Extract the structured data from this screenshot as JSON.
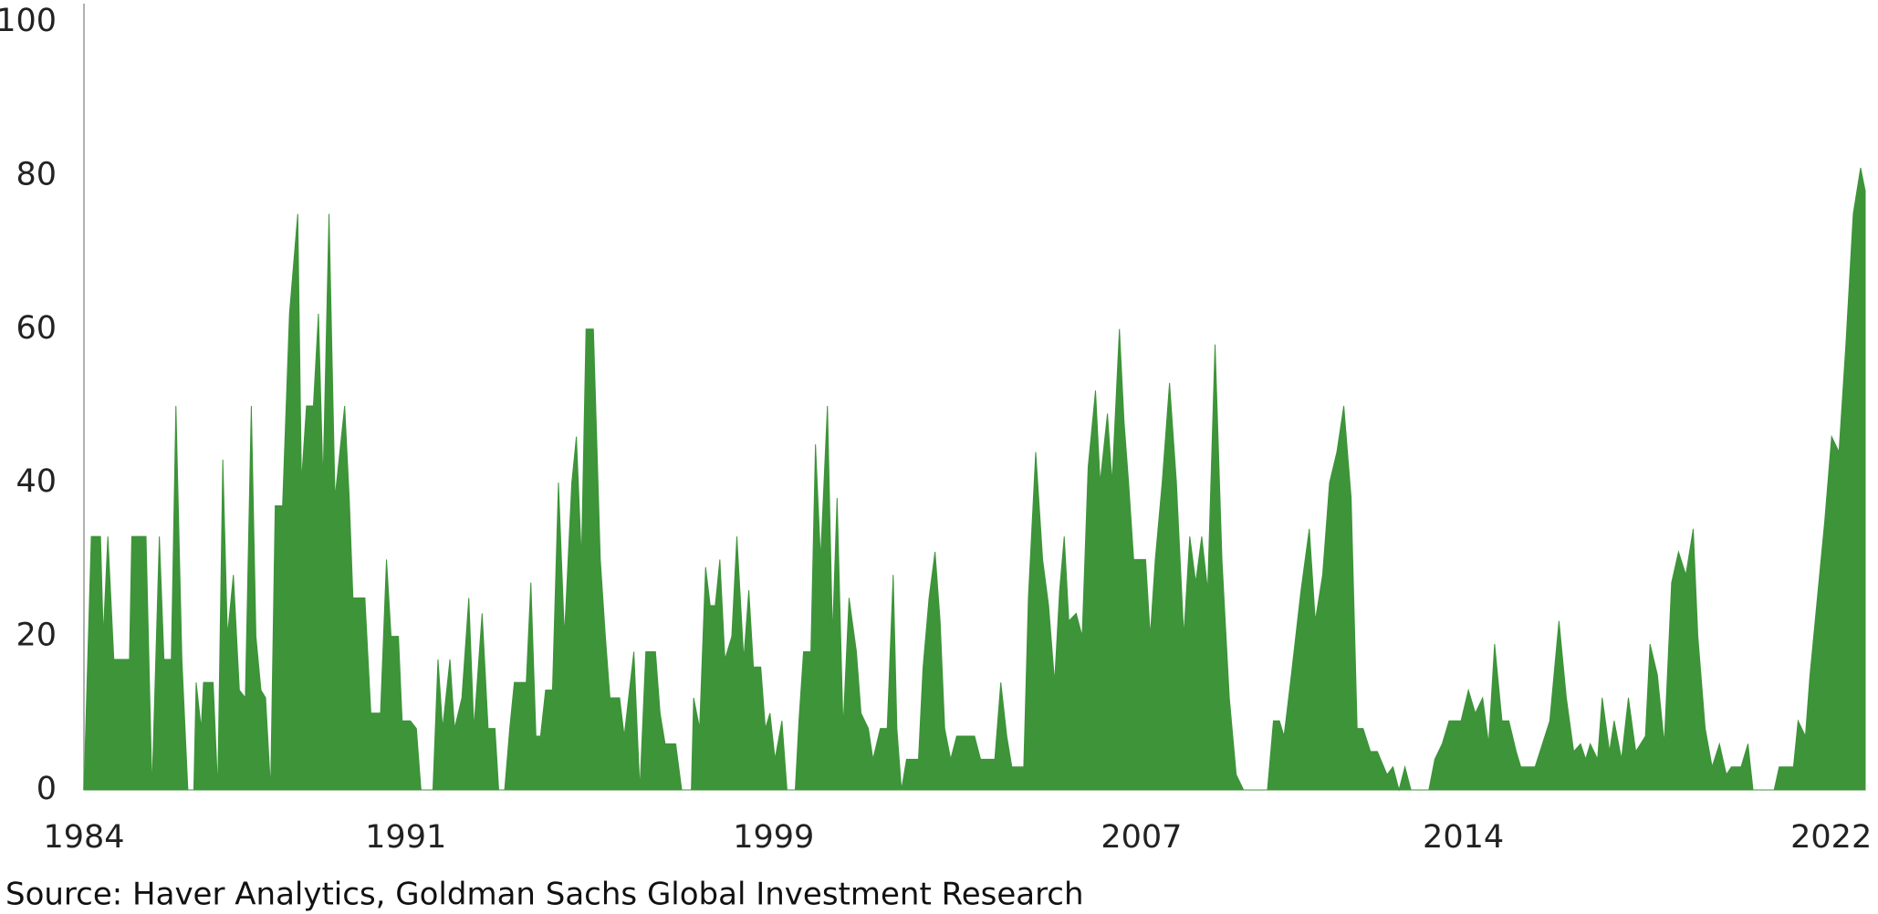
{
  "chart_data": {
    "type": "area",
    "source": "Source: Haver Analytics, Goldman Sachs Global Investment Research",
    "color": "#3d9439",
    "xlim": [
      1984,
      2022.8
    ],
    "xticks": [
      1984,
      1991,
      1999,
      2007,
      2014,
      2022
    ],
    "ylim": [
      0,
      100
    ],
    "yticks": [
      0,
      20,
      40,
      60,
      80,
      100
    ],
    "x": [
      1984.0,
      1984.16,
      1984.36,
      1984.42,
      1984.52,
      1984.65,
      1984.99,
      1985.04,
      1985.35,
      1985.48,
      1985.64,
      1985.74,
      1985.9,
      1986.0,
      1986.13,
      1986.26,
      1986.39,
      1986.44,
      1986.55,
      1986.6,
      1986.81,
      1986.91,
      1987.02,
      1987.12,
      1987.25,
      1987.38,
      1987.51,
      1987.64,
      1987.74,
      1987.85,
      1987.95,
      1988.06,
      1988.16,
      1988.32,
      1988.47,
      1988.65,
      1988.73,
      1988.84,
      1988.99,
      1989.1,
      1989.2,
      1989.33,
      1989.46,
      1989.67,
      1989.77,
      1989.85,
      1990.11,
      1990.24,
      1990.45,
      1990.58,
      1990.68,
      1990.84,
      1990.92,
      1991.1,
      1991.23,
      1991.33,
      1991.59,
      1991.7,
      1991.8,
      1991.96,
      1992.06,
      1992.22,
      1992.37,
      1992.48,
      1992.66,
      1992.79,
      1992.94,
      1993.02,
      1993.15,
      1993.26,
      1993.36,
      1993.62,
      1993.72,
      1993.83,
      1993.93,
      1994.04,
      1994.19,
      1994.32,
      1994.45,
      1994.61,
      1994.71,
      1994.82,
      1994.92,
      1995.08,
      1995.23,
      1995.34,
      1995.44,
      1995.65,
      1995.75,
      1995.96,
      1996.09,
      1996.22,
      1996.43,
      1996.53,
      1996.64,
      1996.87,
      1997.0,
      1997.21,
      1997.26,
      1997.39,
      1997.52,
      1997.62,
      1997.73,
      1997.83,
      1997.94,
      1998.09,
      1998.2,
      1998.35,
      1998.46,
      1998.56,
      1998.72,
      1998.82,
      1998.92,
      1999.03,
      1999.18,
      1999.29,
      1999.47,
      1999.55,
      1999.65,
      1999.81,
      1999.91,
      2000.02,
      2000.17,
      2000.28,
      2000.38,
      2000.51,
      2000.64,
      2000.8,
      2000.9,
      2001.06,
      2001.16,
      2001.32,
      2001.47,
      2001.6,
      2001.68,
      2001.78,
      2001.89,
      2002.15,
      2002.25,
      2002.38,
      2002.51,
      2002.62,
      2002.72,
      2002.85,
      2002.98,
      2003.37,
      2003.5,
      2003.81,
      2003.94,
      2004.07,
      2004.18,
      2004.44,
      2004.54,
      2004.7,
      2004.85,
      2004.98,
      2005.11,
      2005.22,
      2005.32,
      2005.42,
      2005.58,
      2005.71,
      2005.84,
      2006.0,
      2006.1,
      2006.26,
      2006.36,
      2006.52,
      2006.62,
      2006.72,
      2006.83,
      2007.09,
      2007.19,
      2007.3,
      2007.45,
      2007.61,
      2007.76,
      2007.92,
      2008.05,
      2008.18,
      2008.31,
      2008.44,
      2008.6,
      2008.75,
      2008.91,
      2009.06,
      2009.22,
      2009.74,
      2009.87,
      2010.0,
      2010.1,
      2010.26,
      2010.47,
      2010.65,
      2010.78,
      2010.94,
      2011.09,
      2011.25,
      2011.4,
      2011.56,
      2011.69,
      2011.82,
      2011.98,
      2012.13,
      2012.34,
      2012.47,
      2012.6,
      2012.73,
      2012.86,
      2013.25,
      2013.38,
      2013.54,
      2013.69,
      2013.95,
      2014.11,
      2014.26,
      2014.42,
      2014.55,
      2014.68,
      2014.84,
      2014.99,
      2015.15,
      2015.25,
      2015.56,
      2015.72,
      2015.88,
      2016.08,
      2016.24,
      2016.4,
      2016.55,
      2016.66,
      2016.76,
      2016.92,
      2017.02,
      2017.18,
      2017.28,
      2017.44,
      2017.59,
      2017.75,
      2017.96,
      2018.06,
      2018.22,
      2018.37,
      2018.53,
      2018.68,
      2018.84,
      2019.0,
      2019.1,
      2019.26,
      2019.41,
      2019.57,
      2019.72,
      2019.83,
      2020.04,
      2020.19,
      2020.3,
      2020.76,
      2020.87,
      2021.18,
      2021.28,
      2021.44,
      2021.54,
      2021.7,
      2021.86,
      2022.01,
      2022.17,
      2022.32,
      2022.48,
      2022.64,
      2022.74
    ],
    "values": [
      0,
      33,
      33,
      20,
      33,
      17,
      17,
      33,
      33,
      0,
      33,
      17,
      17,
      50,
      17,
      0,
      0,
      14,
      8,
      14,
      14,
      0,
      43,
      20,
      28,
      13,
      12,
      50,
      20,
      13,
      12,
      0,
      37,
      37,
      62,
      75,
      40,
      50,
      50,
      62,
      40,
      75,
      38,
      50,
      38,
      25,
      25,
      10,
      10,
      30,
      20,
      20,
      9,
      9,
      8,
      0,
      0,
      17,
      8,
      17,
      8,
      12,
      25,
      8,
      23,
      8,
      8,
      0,
      0,
      8,
      14,
      14,
      27,
      7,
      7,
      13,
      13,
      40,
      20,
      40,
      46,
      30,
      60,
      60,
      30,
      20,
      12,
      12,
      7,
      18,
      0,
      18,
      18,
      10,
      6,
      6,
      0,
      0,
      12,
      8,
      29,
      24,
      24,
      30,
      17,
      20,
      33,
      17,
      26,
      16,
      16,
      8,
      10,
      4,
      9,
      0,
      0,
      9,
      18,
      18,
      45,
      30,
      50,
      20,
      38,
      8,
      25,
      18,
      10,
      8,
      4,
      8,
      8,
      28,
      8,
      0,
      4,
      4,
      16,
      25,
      31,
      22,
      8,
      4,
      7,
      7,
      4,
      4,
      14,
      7,
      3,
      3,
      25,
      44,
      30,
      24,
      14,
      26,
      33,
      22,
      23,
      20,
      42,
      52,
      40,
      49,
      40,
      60,
      48,
      40,
      30,
      30,
      20,
      30,
      40,
      53,
      40,
      20,
      33,
      27,
      33,
      26,
      58,
      30,
      12,
      2,
      0,
      0,
      9,
      9,
      7,
      15,
      26,
      34,
      22,
      28,
      40,
      44,
      50,
      38,
      8,
      8,
      5,
      5,
      2,
      3,
      0,
      3,
      0,
      0,
      4,
      6,
      9,
      9,
      13,
      10,
      12,
      6,
      19,
      9,
      9,
      5,
      3,
      3,
      6,
      9,
      22,
      12,
      5,
      6,
      4,
      6,
      4,
      12,
      5,
      9,
      4,
      12,
      5,
      7,
      19,
      15,
      6,
      27,
      31,
      28,
      34,
      20,
      8,
      3,
      6,
      2,
      3,
      3,
      6,
      0,
      0,
      3,
      3,
      9,
      7,
      15,
      25,
      35,
      46,
      44,
      58,
      75,
      81,
      78
    ]
  }
}
